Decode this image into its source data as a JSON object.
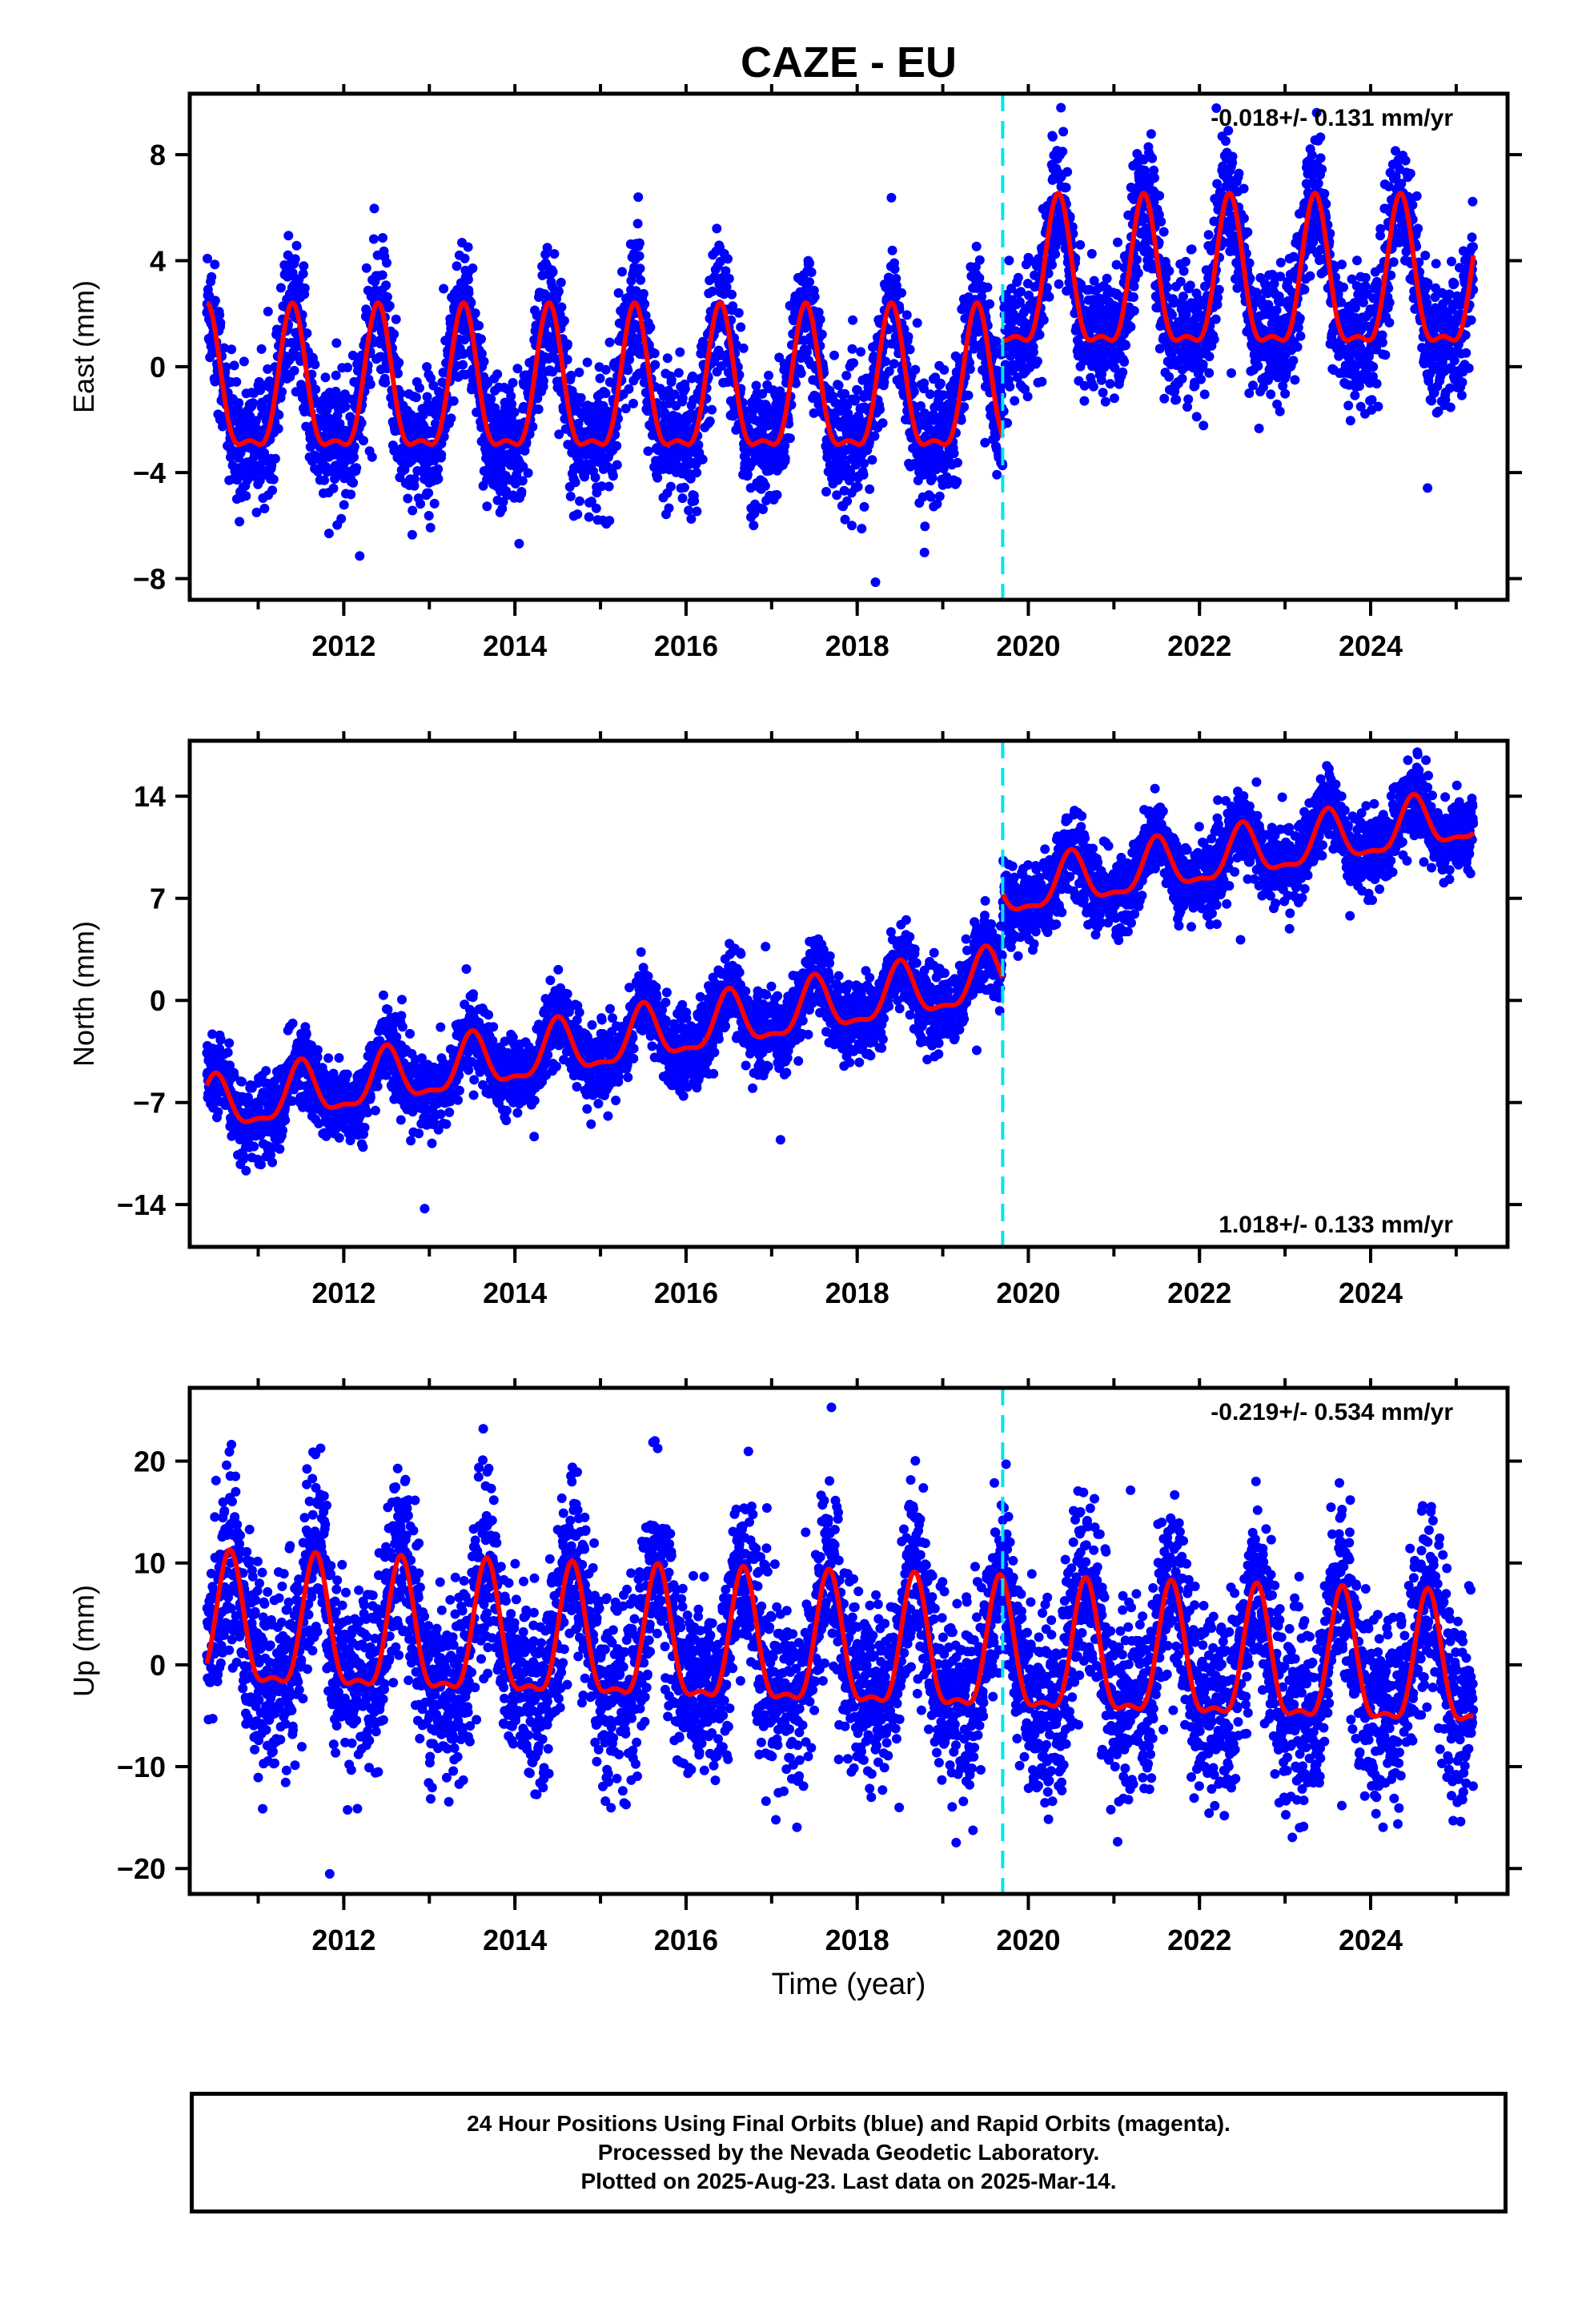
{
  "figure": {
    "title": "CAZE - EU",
    "xlabel": "Time (year)",
    "caption": [
      "24 Hour Positions Using Final Orbits (blue) and Rapid Orbits (magenta).",
      "Processed by the Nevada Geodetic Laboratory.",
      "Plotted on 2025-Aug-23. Last data on 2025-Mar-14."
    ],
    "colors": {
      "points": "#0000ff",
      "model": "#ff0000",
      "equipment_change": "#00e5ee",
      "axes": "#000000"
    }
  },
  "chart_data": [
    {
      "type": "scatter",
      "ylabel": "East (mm)",
      "rate_label": "-0.018+/- 0.131 mm/yr",
      "rate_position": "top-right",
      "xlim": [
        2010.2,
        2025.6
      ],
      "ylim": [
        -8.8,
        10.3
      ],
      "yticks": [
        8,
        4,
        0,
        -4,
        -8
      ],
      "ytick_labels": [
        "8",
        "4",
        "0",
        "−4",
        "−8"
      ],
      "xticks": [
        2012,
        2014,
        2016,
        2018,
        2020,
        2022,
        2024
      ],
      "equipment_change_x": 2019.7,
      "data_range": [
        2010.4,
        2025.2
      ],
      "model": {
        "segments": [
          {
            "x_start": 2010.4,
            "x_end": 2019.7,
            "offset": -1.1,
            "amplitude": 2.6,
            "peak_phase": 0.4
          },
          {
            "x_start": 2019.7,
            "x_end": 2025.2,
            "offset": 2.9,
            "amplitude": 2.7,
            "peak_phase": 0.35
          }
        ],
        "slope": -0.018
      },
      "scatter_sd": 1.2
    },
    {
      "type": "scatter",
      "ylabel": "North (mm)",
      "rate_label": "1.018+/- 0.133 mm/yr",
      "rate_position": "bottom-right",
      "xlim": [
        2010.2,
        2025.6
      ],
      "ylim": [
        -16.9,
        17.8
      ],
      "yticks": [
        14,
        7,
        0,
        -7,
        -14
      ],
      "ytick_labels": [
        "14",
        "7",
        "0",
        "−7",
        "−14"
      ],
      "xticks": [
        2012,
        2014,
        2016,
        2018,
        2020,
        2022,
        2024
      ],
      "equipment_change_x": 2019.7,
      "data_range": [
        2010.4,
        2025.2
      ],
      "model": {
        "segments": [
          {
            "x_start": 2010.4,
            "x_end": 2019.7,
            "offset_at_start": -7.5,
            "offset_at_end": 1.5,
            "amplitude": 1.8,
            "peak_phase": 0.5
          },
          {
            "x_start": 2019.7,
            "x_end": 2025.2,
            "offset_at_start": 7.3,
            "offset_at_end": 12.5,
            "amplitude": 1.7,
            "peak_phase": 0.5
          }
        ],
        "slope": 1.018
      },
      "scatter_sd": 1.3
    },
    {
      "type": "scatter",
      "ylabel": "Up (mm)",
      "rate_label": "-0.219+/- 0.534 mm/yr",
      "rate_position": "top-right",
      "xlim": [
        2010.2,
        2025.6
      ],
      "ylim": [
        -22.5,
        27.2
      ],
      "yticks": [
        20,
        10,
        0,
        -10,
        -20
      ],
      "ytick_labels": [
        "20",
        "10",
        "0",
        "−10",
        "−20"
      ],
      "xticks": [
        2012,
        2014,
        2016,
        2018,
        2020,
        2022,
        2024
      ],
      "equipment_change_x": 2019.7,
      "data_range": [
        2010.4,
        2025.2
      ],
      "model": {
        "segments": [
          {
            "x_start": 2010.4,
            "x_end": 2025.2,
            "offset_at_start": 3.0,
            "offset_at_end": -1.0,
            "amplitude": 6.2,
            "peak_phase": 0.67
          }
        ],
        "slope": -0.219
      },
      "scatter_sd": 4.5
    }
  ]
}
